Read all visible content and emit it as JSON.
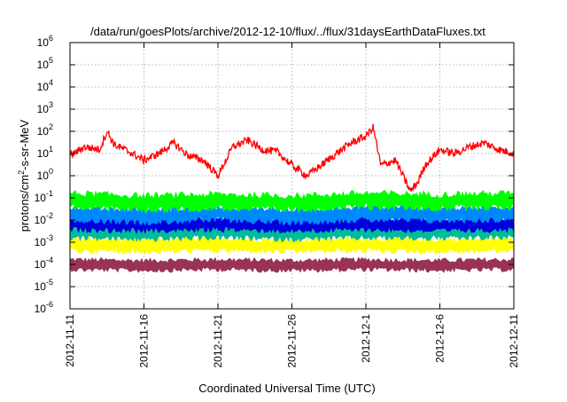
{
  "chart_data": {
    "type": "line",
    "title": "/data/run/goesPlots/archive/2012-12-10/flux/../flux/31daysEarthDataFluxes.txt",
    "ylabel": "protons/cm²-s-sr-MeV",
    "ylabel_parts": {
      "before": "protons/cm",
      "sup": "2",
      "after": "-s-sr-MeV"
    },
    "xlabel": "Coordinated Universal Time (UTC)",
    "yscale": "log",
    "ylim": [
      1e-06,
      1000000.0
    ],
    "yticks": [
      {
        "base": "10",
        "exp": "-6"
      },
      {
        "base": "10",
        "exp": "-5"
      },
      {
        "base": "10",
        "exp": "-4"
      },
      {
        "base": "10",
        "exp": "-3"
      },
      {
        "base": "10",
        "exp": "-2"
      },
      {
        "base": "10",
        "exp": "-1"
      },
      {
        "base": "10",
        "exp": "0"
      },
      {
        "base": "10",
        "exp": "1"
      },
      {
        "base": "10",
        "exp": "2"
      },
      {
        "base": "10",
        "exp": "3"
      },
      {
        "base": "10",
        "exp": "4"
      },
      {
        "base": "10",
        "exp": "5"
      },
      {
        "base": "10",
        "exp": "6"
      }
    ],
    "xlim": [
      "2012-11-11",
      "2012-12-11"
    ],
    "xticks": [
      "2012-11-11",
      "2012-11-16",
      "2012-11-21",
      "2012-11-26",
      "2012-12-1",
      "2012-12-6",
      "2012-12-11"
    ],
    "grid": true,
    "series": [
      {
        "color": "#ff0000",
        "x": [
          "2012-11-11",
          "2012-11-12",
          "2012-11-13",
          "2012-11-13T12",
          "2012-11-14",
          "2012-11-15",
          "2012-11-16",
          "2012-11-17",
          "2012-11-18",
          "2012-11-19",
          "2012-11-20",
          "2012-11-21",
          "2012-11-22",
          "2012-11-23",
          "2012-11-24",
          "2012-11-25",
          "2012-11-26",
          "2012-11-27",
          "2012-11-28",
          "2012-11-29",
          "2012-11-30",
          "2012-12-1",
          "2012-12-1T12",
          "2012-12-2",
          "2012-12-3",
          "2012-12-4",
          "2012-12-4T12",
          "2012-12-5",
          "2012-12-6",
          "2012-12-7",
          "2012-12-8",
          "2012-12-9",
          "2012-12-10",
          "2012-12-11"
        ],
        "values": [
          8,
          20,
          15,
          100,
          25,
          12,
          5,
          10,
          30,
          8,
          5,
          1,
          20,
          40,
          15,
          12,
          3,
          1,
          3,
          10,
          30,
          60,
          150,
          3,
          5,
          0.2,
          0.5,
          3,
          15,
          10,
          20,
          30,
          15,
          10
        ]
      },
      {
        "color": "#00ff00",
        "x": [
          "2012-11-11",
          "2012-11-16",
          "2012-11-21",
          "2012-11-26",
          "2012-12-1",
          "2012-12-6",
          "2012-12-11"
        ],
        "values": [
          0.08,
          0.06,
          0.07,
          0.06,
          0.08,
          0.07,
          0.08
        ]
      },
      {
        "color": "#0088ff",
        "x": [
          "2012-11-11",
          "2012-11-16",
          "2012-11-21",
          "2012-11-26",
          "2012-12-1",
          "2012-12-6",
          "2012-12-11"
        ],
        "values": [
          0.02,
          0.015,
          0.02,
          0.015,
          0.02,
          0.018,
          0.02
        ]
      },
      {
        "color": "#0000dd",
        "x": [
          "2012-11-11",
          "2012-11-16",
          "2012-11-21",
          "2012-11-26",
          "2012-12-1",
          "2012-12-6",
          "2012-12-11"
        ],
        "values": [
          0.007,
          0.006,
          0.007,
          0.006,
          0.007,
          0.006,
          0.007
        ]
      },
      {
        "color": "#00bb99",
        "x": [
          "2012-11-11",
          "2012-11-16",
          "2012-11-21",
          "2012-11-26",
          "2012-12-1",
          "2012-12-6",
          "2012-12-11"
        ],
        "values": [
          0.003,
          0.0025,
          0.003,
          0.0025,
          0.003,
          0.0028,
          0.003
        ]
      },
      {
        "color": "#ffff00",
        "x": [
          "2012-11-11",
          "2012-11-16",
          "2012-11-21",
          "2012-11-26",
          "2012-12-1",
          "2012-12-6",
          "2012-12-11"
        ],
        "values": [
          0.0008,
          0.0007,
          0.0008,
          0.0007,
          0.0008,
          0.0007,
          0.0008
        ]
      },
      {
        "color": "#993355",
        "x": [
          "2012-11-11",
          "2012-11-16",
          "2012-11-21",
          "2012-11-26",
          "2012-12-1",
          "2012-12-6",
          "2012-12-11"
        ],
        "values": [
          0.0001,
          9e-05,
          0.0001,
          9e-05,
          0.0001,
          9e-05,
          0.0001
        ]
      }
    ]
  }
}
